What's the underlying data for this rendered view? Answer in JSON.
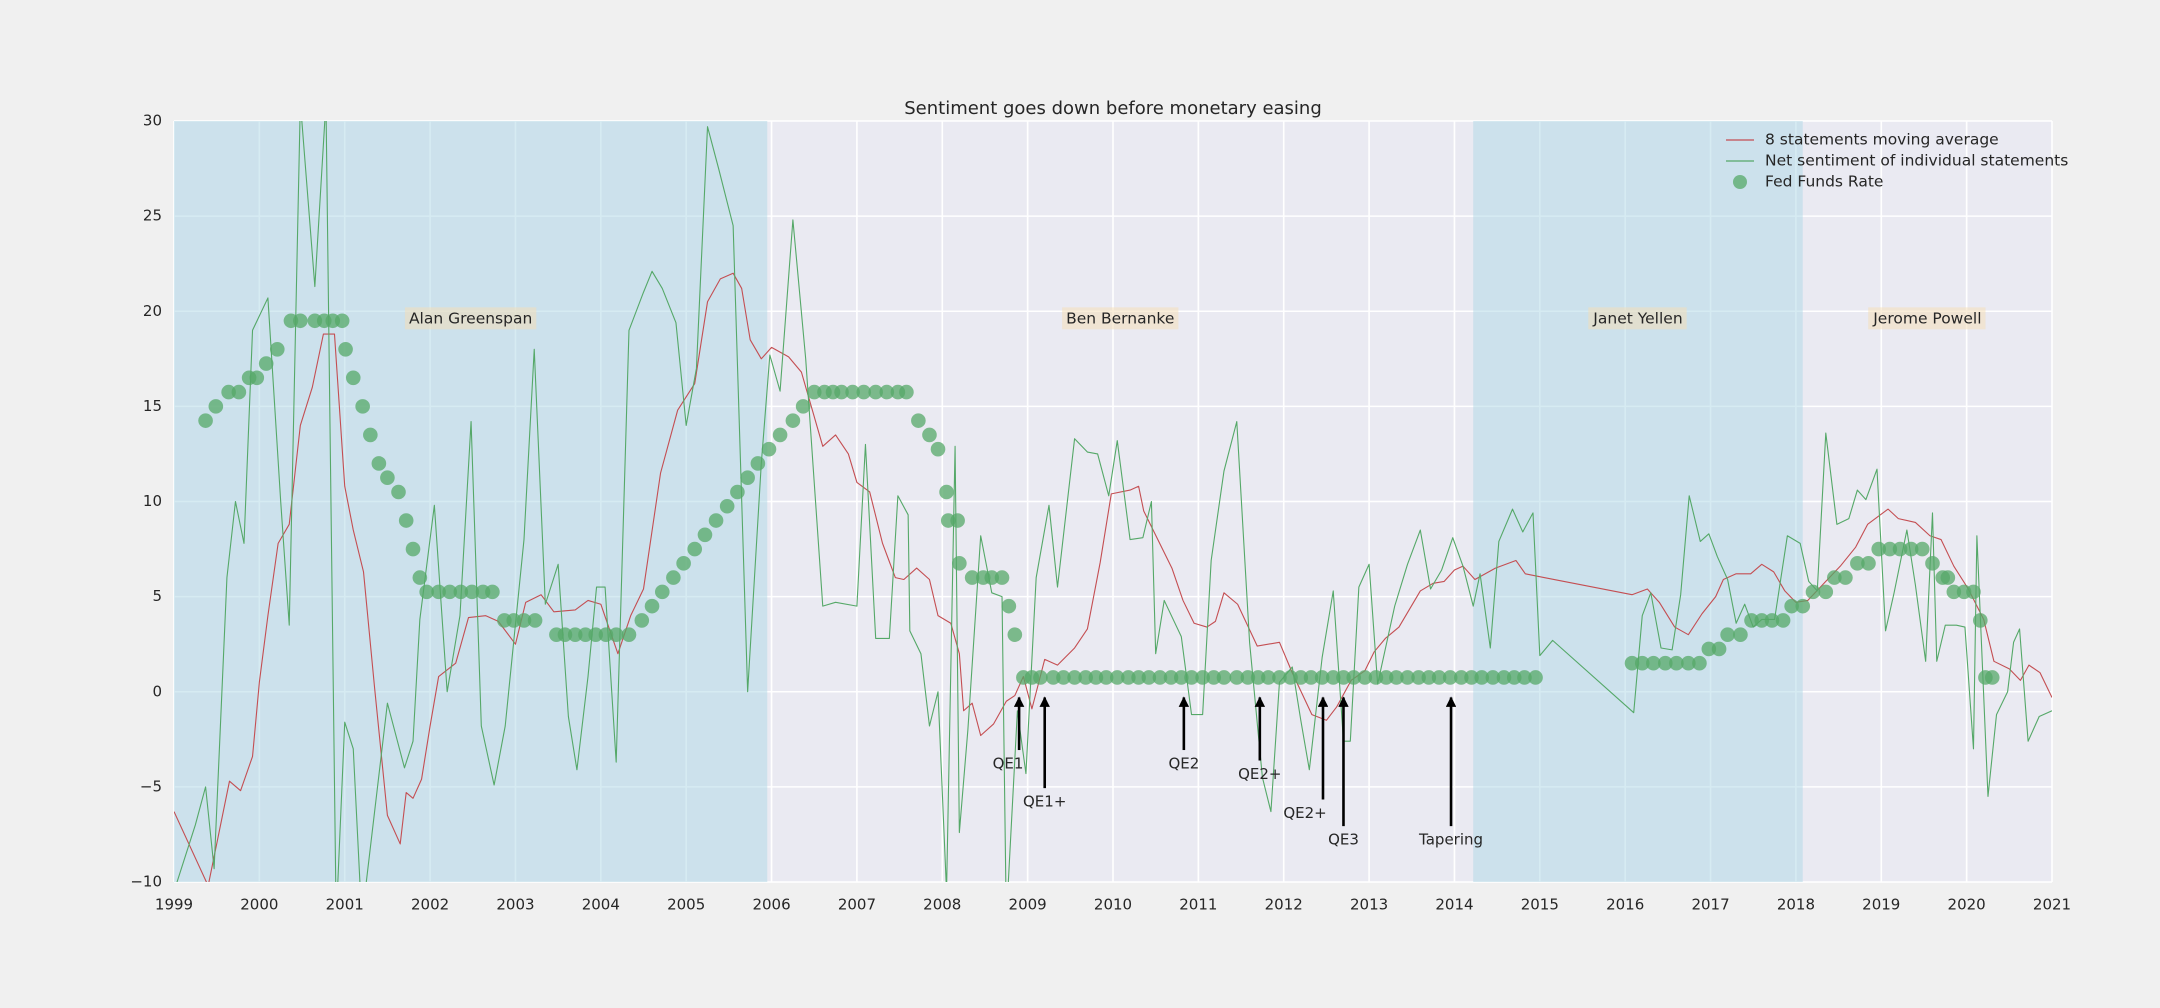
{
  "chart_data": {
    "type": "line",
    "title": "Sentiment goes down before monetary easing",
    "xlim": [
      1999,
      2021
    ],
    "xticks": [
      1999,
      2000,
      2001,
      2002,
      2003,
      2004,
      2005,
      2006,
      2007,
      2008,
      2009,
      2010,
      2011,
      2012,
      2013,
      2014,
      2015,
      2016,
      2017,
      2018,
      2019,
      2020,
      2021
    ],
    "ylim": [
      -10,
      30
    ],
    "yticks": [
      {
        "value": -10,
        "label": "−10"
      },
      {
        "value": -5,
        "label": "−5"
      },
      0,
      5,
      10,
      15,
      20,
      25,
      30
    ],
    "grid": true,
    "legend": "upper right",
    "shade_color": "#add8e6",
    "label_color": "#f5deb3",
    "spans": [
      {
        "label": "Alan Greenspan",
        "start": 1999,
        "end": 2005.95,
        "shaded": true
      },
      {
        "label": "Ben Bernanke",
        "start": 2005.95,
        "end": 2014.22,
        "shaded": false
      },
      {
        "label": "Janet Yellen",
        "start": 2014.22,
        "end": 2018.08,
        "shaded": true
      },
      {
        "label": "Jerome Powell",
        "start": 2018.08,
        "end": 2021,
        "shaded": false
      }
    ],
    "annotations": [
      {
        "text": "QE1",
        "xy": [
          2008.9,
          -0.3
        ],
        "xytext": [
          2008.77,
          -3.8
        ]
      },
      {
        "text": "QE1+",
        "xy": [
          2009.2,
          -0.3
        ],
        "xytext": [
          2009.2,
          -5.8
        ]
      },
      {
        "text": "QE2",
        "xy": [
          2010.83,
          -0.3
        ],
        "xytext": [
          2010.83,
          -3.8
        ]
      },
      {
        "text": "QE2+",
        "xy": [
          2011.72,
          -0.3
        ],
        "xytext": [
          2011.72,
          -4.35
        ]
      },
      {
        "text": "QE2+",
        "xy": [
          2012.46,
          -0.3
        ],
        "xytext": [
          2012.25,
          -6.4
        ]
      },
      {
        "text": "QE3",
        "xy": [
          2012.7,
          -0.3
        ],
        "xytext": [
          2012.7,
          -7.8
        ]
      },
      {
        "text": "Tapering",
        "xy": [
          2013.96,
          -0.3
        ],
        "xytext": [
          2013.96,
          -7.8
        ]
      }
    ],
    "series": [
      {
        "name": "8 statements moving average",
        "type": "line",
        "color": "#c44e52",
        "x": [
          1999.0,
          1999.4,
          1999.65,
          1999.78,
          1999.92,
          2000.0,
          2000.1,
          2000.22,
          2000.35,
          2000.48,
          2000.62,
          2000.75,
          2000.88,
          2001.0,
          2001.1,
          2001.22,
          2001.35,
          2001.5,
          2001.65,
          2001.72,
          2001.8,
          2001.9,
          2002.0,
          2002.1,
          2002.3,
          2002.45,
          2002.65,
          2002.8,
          2003.0,
          2003.12,
          2003.3,
          2003.45,
          2003.7,
          2003.85,
          2004.0,
          2004.2,
          2004.35,
          2004.5,
          2004.7,
          2004.9,
          2005.1,
          2005.25,
          2005.4,
          2005.55,
          2005.65,
          2005.75,
          2005.88,
          2006.0,
          2006.2,
          2006.35,
          2006.6,
          2006.75,
          2006.9,
          2007.0,
          2007.15,
          2007.3,
          2007.45,
          2007.55,
          2007.7,
          2007.85,
          2007.95,
          2008.1,
          2008.2,
          2008.25,
          2008.35,
          2008.45,
          2008.6,
          2008.75,
          2008.85,
          2008.95,
          2009.05,
          2009.2,
          2009.35,
          2009.55,
          2009.7,
          2009.85,
          2009.98,
          2010.2,
          2010.3,
          2010.36,
          2010.69,
          2010.82,
          2010.95,
          2011.1,
          2011.2,
          2011.3,
          2011.46,
          2011.69,
          2011.95,
          2012.1,
          2012.33,
          2012.5,
          2012.62,
          2012.79,
          2012.95,
          2013.06,
          2013.19,
          2013.35,
          2013.6,
          2013.75,
          2013.88,
          2014.0,
          2014.1,
          2014.24,
          2014.48,
          2014.72,
          2014.83,
          2015.05,
          2016.08,
          2016.26,
          2016.4,
          2016.58,
          2016.74,
          2016.9,
          2017.06,
          2017.15,
          2017.3,
          2017.47,
          2017.6,
          2017.74,
          2017.87,
          2018.0,
          2018.14,
          2018.35,
          2018.52,
          2018.7,
          2018.84,
          2019.08,
          2019.2,
          2019.4,
          2019.57,
          2019.7,
          2019.85,
          2020.02,
          2020.2,
          2020.32,
          2020.5,
          2020.63,
          2020.73,
          2020.86,
          2021.0
        ],
        "values": [
          -6.3,
          -10.2,
          -4.7,
          -5.2,
          -3.4,
          0.5,
          4,
          7.8,
          8.8,
          14,
          16,
          18.8,
          18.8,
          10.8,
          8.5,
          6.3,
          0.2,
          -6.5,
          -8,
          -5.3,
          -5.6,
          -4.6,
          -1.8,
          0.8,
          1.5,
          3.9,
          4,
          3.7,
          2.5,
          4.7,
          5.1,
          4.2,
          4.3,
          4.8,
          4.6,
          2,
          4,
          5.4,
          11.5,
          14.8,
          16.2,
          20.5,
          21.7,
          22,
          21.2,
          18.5,
          17.5,
          18.1,
          17.6,
          16.8,
          12.9,
          13.5,
          12.5,
          11,
          10.5,
          7.8,
          6,
          5.9,
          6.5,
          5.9,
          4,
          3.6,
          2,
          -1,
          -0.6,
          -2.3,
          -1.7,
          -0.5,
          -0.2,
          0.8,
          -0.9,
          1.7,
          1.4,
          2.3,
          3.3,
          6.8,
          10.4,
          10.6,
          10.8,
          9.5,
          6.5,
          4.8,
          3.6,
          3.4,
          3.7,
          5.2,
          4.6,
          2.4,
          2.6,
          1,
          -1.2,
          -1.5,
          -0.8,
          0.6,
          1.1,
          2.1,
          2.8,
          3.4,
          5.3,
          5.7,
          5.8,
          6.4,
          6.6,
          5.9,
          6.5,
          6.9,
          6.2,
          6,
          5.1,
          5.4,
          4.7,
          3.4,
          3,
          4.1,
          5,
          5.9,
          6.2,
          6.2,
          6.7,
          6.3,
          5.3,
          4.7,
          4.8,
          5.8,
          6.6,
          7.6,
          8.8,
          9.6,
          9.1,
          8.9,
          8.2,
          8,
          6.6,
          5.4,
          3.8,
          1.6,
          1.2,
          0.6,
          1.4,
          1,
          -0.3
        ]
      },
      {
        "name": "Net sentiment of individual statements",
        "type": "line",
        "color": "#55a868",
        "x": [
          1999.0,
          1999.25,
          1999.37,
          1999.47,
          1999.62,
          1999.72,
          1999.82,
          1999.92,
          2000.1,
          2000.25,
          2000.35,
          2000.48,
          2000.65,
          2000.78,
          2000.9,
          2001.0,
          2001.1,
          2001.2,
          2001.5,
          2001.7,
          2001.8,
          2001.88,
          2002.05,
          2002.2,
          2002.35,
          2002.48,
          2002.6,
          2002.75,
          2002.88,
          2003.1,
          2003.22,
          2003.35,
          2003.5,
          2003.62,
          2003.72,
          2003.85,
          2003.95,
          2004.05,
          2004.18,
          2004.33,
          2004.5,
          2004.6,
          2004.72,
          2004.88,
          2005.0,
          2005.12,
          2005.25,
          2005.38,
          2005.55,
          2005.72,
          2005.88,
          2005.98,
          2006.1,
          2006.25,
          2006.4,
          2006.6,
          2006.75,
          2007.0,
          2007.1,
          2007.22,
          2007.38,
          2007.48,
          2007.6,
          2007.62,
          2007.75,
          2007.85,
          2007.95,
          2008.05,
          2008.15,
          2008.2,
          2008.3,
          2008.45,
          2008.58,
          2008.7,
          2008.75,
          2008.88,
          2008.98,
          2009.1,
          2009.25,
          2009.35,
          2009.55,
          2009.7,
          2009.82,
          2009.95,
          2010.05,
          2010.2,
          2010.35,
          2010.45,
          2010.5,
          2010.6,
          2010.8,
          2010.92,
          2011.05,
          2011.15,
          2011.3,
          2011.45,
          2011.6,
          2011.75,
          2011.85,
          2011.95,
          2012.1,
          2012.2,
          2012.3,
          2012.45,
          2012.58,
          2012.7,
          2012.78,
          2012.88,
          2013.0,
          2013.1,
          2013.3,
          2013.45,
          2013.6,
          2013.72,
          2013.85,
          2013.98,
          2014.1,
          2014.22,
          2014.3,
          2014.42,
          2014.52,
          2014.68,
          2014.8,
          2014.92,
          2015.0,
          2015.15,
          2016.1,
          2016.2,
          2016.3,
          2016.42,
          2016.55,
          2016.65,
          2016.75,
          2016.88,
          2016.98,
          2017.08,
          2017.2,
          2017.3,
          2017.4,
          2017.5,
          2017.6,
          2017.75,
          2017.9,
          2018.05,
          2018.15,
          2018.25,
          2018.35,
          2018.48,
          2018.62,
          2018.72,
          2018.82,
          2018.95,
          2019.05,
          2019.15,
          2019.3,
          2019.4,
          2019.52,
          2019.6,
          2019.65,
          2019.75,
          2019.88,
          2019.98,
          2020.08,
          2020.12,
          2020.25,
          2020.35,
          2020.48,
          2020.55,
          2020.62,
          2020.72,
          2020.85,
          2021.0
        ],
        "values": [
          -10.5,
          -7,
          -5,
          -9.3,
          6,
          10,
          7.8,
          19,
          20.7,
          10,
          3.5,
          31,
          21.3,
          31,
          -12,
          -1.6,
          -3,
          -12,
          -0.6,
          -4,
          -2.6,
          3.8,
          9.8,
          0,
          4,
          14.2,
          -1.8,
          -4.9,
          -1.8,
          8,
          18,
          4.6,
          6.7,
          -1.3,
          -4.1,
          0.8,
          5.5,
          5.5,
          -3.7,
          19,
          21,
          22.1,
          21.2,
          19.4,
          14,
          17,
          29.7,
          27.5,
          24.5,
          0,
          12,
          17.7,
          15.8,
          24.8,
          17.5,
          4.5,
          4.7,
          4.5,
          13,
          2.8,
          2.8,
          10.3,
          9.3,
          3.2,
          2,
          -1.8,
          0,
          -10.5,
          12.9,
          -7.4,
          -2,
          8.2,
          5.2,
          5,
          -12,
          -1,
          -4.3,
          6,
          9.8,
          5.5,
          13.3,
          12.6,
          12.5,
          10.3,
          13.2,
          8,
          8.1,
          10,
          2,
          4.8,
          2.9,
          -1.2,
          -1.2,
          6.9,
          11.6,
          14.2,
          2.6,
          -4.5,
          -6.3,
          0.5,
          1.3,
          -1.5,
          -4.1,
          1.8,
          5.3,
          -2.6,
          -2.6,
          5.5,
          6.7,
          0.4,
          4.5,
          6.7,
          8.5,
          5.4,
          6.4,
          8.1,
          6.6,
          4.5,
          6.2,
          2.3,
          7.9,
          9.6,
          8.4,
          9.4,
          1.9,
          2.7,
          -1.1,
          4,
          5.2,
          2.3,
          2.2,
          5.1,
          10.3,
          7.9,
          8.3,
          7.1,
          5.9,
          3.6,
          4.6,
          3.4,
          3.8,
          3.8,
          8.2,
          7.8,
          5.8,
          5.3,
          13.6,
          8.8,
          9.1,
          10.6,
          10.1,
          11.7,
          3.2,
          5.2,
          8.5,
          5.6,
          1.6,
          9.4,
          1.6,
          3.5,
          3.5,
          3.4,
          -3,
          8.2,
          -5.5,
          -1.2,
          0,
          2.6,
          3.3,
          -2.6,
          -1.3,
          -1
        ]
      },
      {
        "name": "Fed Funds Rate",
        "type": "scatter",
        "color": "#55a868",
        "alpha": 0.75,
        "x": [
          1999.37,
          1999.49,
          1999.64,
          1999.76,
          1999.88,
          1999.97,
          2000.08,
          2000.21,
          2000.37,
          2000.48,
          2000.65,
          2000.76,
          2000.86,
          2000.97,
          2001.01,
          2001.1,
          2001.21,
          2001.3,
          2001.4,
          2001.5,
          2001.63,
          2001.72,
          2001.8,
          2001.88,
          2001.96,
          2002.1,
          2002.23,
          2002.36,
          2002.49,
          2002.62,
          2002.73,
          2002.87,
          2002.98,
          2003.1,
          2003.23,
          2003.48,
          2003.58,
          2003.7,
          2003.82,
          2003.94,
          2004.06,
          2004.18,
          2004.33,
          2004.48,
          2004.6,
          2004.72,
          2004.85,
          2004.97,
          2005.1,
          2005.22,
          2005.35,
          2005.48,
          2005.6,
          2005.72,
          2005.84,
          2005.97,
          2006.1,
          2006.25,
          2006.37,
          2006.5,
          2006.62,
          2006.72,
          2006.82,
          2006.95,
          2007.08,
          2007.22,
          2007.35,
          2007.48,
          2007.58,
          2007.72,
          2007.85,
          2007.95,
          2008.05,
          2008.07,
          2008.18,
          2008.2,
          2008.35,
          2008.48,
          2008.58,
          2008.7,
          2008.78,
          2008.85,
          2008.95,
          2009.05,
          2009.15,
          2009.3,
          2009.42,
          2009.55,
          2009.68,
          2009.8,
          2009.92,
          2010.05,
          2010.18,
          2010.3,
          2010.42,
          2010.55,
          2010.68,
          2010.8,
          2010.92,
          2011.05,
          2011.18,
          2011.3,
          2011.45,
          2011.58,
          2011.7,
          2011.82,
          2011.95,
          2012.08,
          2012.2,
          2012.32,
          2012.45,
          2012.58,
          2012.7,
          2012.82,
          2012.95,
          2013.08,
          2013.2,
          2013.32,
          2013.45,
          2013.58,
          2013.7,
          2013.82,
          2013.95,
          2014.08,
          2014.2,
          2014.32,
          2014.45,
          2014.58,
          2014.7,
          2014.82,
          2014.95,
          2016.08,
          2016.2,
          2016.33,
          2016.47,
          2016.6,
          2016.74,
          2016.87,
          2016.98,
          2017.1,
          2017.2,
          2017.35,
          2017.48,
          2017.6,
          2017.72,
          2017.85,
          2017.95,
          2018.08,
          2018.2,
          2018.35,
          2018.45,
          2018.58,
          2018.72,
          2018.85,
          2018.97,
          2019.1,
          2019.22,
          2019.35,
          2019.48,
          2019.6,
          2019.72,
          2019.78,
          2019.85,
          2019.97,
          2020.08,
          2020.16,
          2020.22,
          2020.3
        ],
        "values": [
          14.25,
          15,
          15.75,
          15.75,
          16.5,
          16.5,
          17.25,
          18,
          19.5,
          19.5,
          19.5,
          19.5,
          19.5,
          19.5,
          18,
          16.5,
          15,
          13.5,
          12,
          11.25,
          10.5,
          9,
          7.5,
          6,
          5.25,
          5.25,
          5.25,
          5.25,
          5.25,
          5.25,
          5.25,
          3.75,
          3.75,
          3.75,
          3.75,
          3,
          3,
          3,
          3,
          3,
          3,
          3,
          3,
          3.75,
          4.5,
          5.25,
          6,
          6.75,
          7.5,
          8.25,
          9,
          9.75,
          10.5,
          11.25,
          12,
          12.75,
          13.5,
          14.25,
          15,
          15.75,
          15.75,
          15.75,
          15.75,
          15.75,
          15.75,
          15.75,
          15.75,
          15.75,
          15.75,
          14.25,
          13.5,
          12.75,
          10.5,
          9,
          9,
          6.75,
          6,
          6,
          6,
          6,
          4.5,
          3,
          0.75,
          0.75,
          0.75,
          0.75,
          0.75,
          0.75,
          0.75,
          0.75,
          0.75,
          0.75,
          0.75,
          0.75,
          0.75,
          0.75,
          0.75,
          0.75,
          0.75,
          0.75,
          0.75,
          0.75,
          0.75,
          0.75,
          0.75,
          0.75,
          0.75,
          0.75,
          0.75,
          0.75,
          0.75,
          0.75,
          0.75,
          0.75,
          0.75,
          0.75,
          0.75,
          0.75,
          0.75,
          0.75,
          0.75,
          0.75,
          0.75,
          0.75,
          0.75,
          0.75,
          0.75,
          0.75,
          0.75,
          0.75,
          0.75,
          1.5,
          1.5,
          1.5,
          1.5,
          1.5,
          1.5,
          1.5,
          2.25,
          2.25,
          3,
          3,
          3.75,
          3.75,
          3.75,
          3.75,
          4.5,
          4.5,
          5.25,
          5.25,
          6,
          6,
          6.75,
          6.75,
          7.5,
          7.5,
          7.5,
          7.5,
          7.5,
          6.75,
          6,
          6,
          5.25,
          5.25,
          5.25,
          3.75,
          0.75,
          0.75
        ]
      }
    ]
  }
}
